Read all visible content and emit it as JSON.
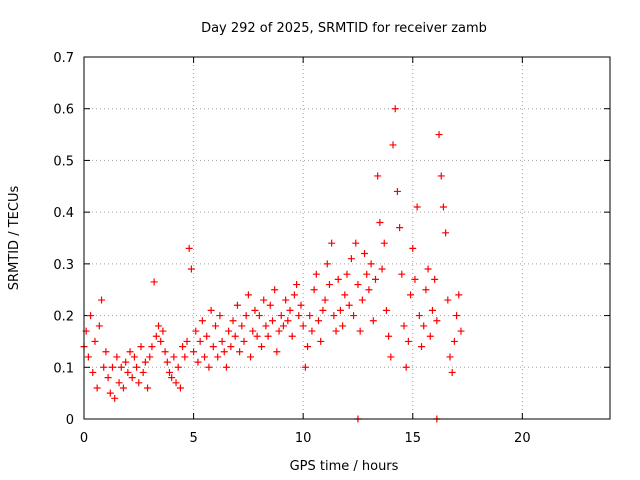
{
  "chart_data": {
    "type": "scatter",
    "title": "Day 292 of 2025, SRMTID for receiver zamb",
    "xlabel": "GPS time / hours",
    "ylabel": "SRMTID / TECUs",
    "xlim": [
      0,
      24
    ],
    "ylim": [
      0,
      0.7
    ],
    "x_ticks": [
      0,
      5,
      10,
      15,
      20
    ],
    "x_tick_labels": [
      "0",
      "5",
      "10",
      "15",
      "20"
    ],
    "y_ticks": [
      0,
      0.1,
      0.2,
      0.3,
      0.4,
      0.5,
      0.6,
      0.7
    ],
    "y_tick_labels": [
      "0",
      "0.1",
      "0.2",
      "0.3",
      "0.4",
      "0.5",
      "0.6",
      "0.7"
    ],
    "grid": true,
    "marker": "+",
    "color": "#ff0000",
    "series": [
      {
        "name": "SRMTID",
        "points": [
          [
            0.0,
            0.14
          ],
          [
            0.1,
            0.17
          ],
          [
            0.2,
            0.12
          ],
          [
            0.3,
            0.2
          ],
          [
            0.4,
            0.09
          ],
          [
            0.5,
            0.15
          ],
          [
            0.6,
            0.06
          ],
          [
            0.7,
            0.18
          ],
          [
            0.8,
            0.23
          ],
          [
            0.9,
            0.1
          ],
          [
            1.0,
            0.13
          ],
          [
            1.1,
            0.08
          ],
          [
            1.2,
            0.05
          ],
          [
            1.3,
            0.1
          ],
          [
            1.4,
            0.04
          ],
          [
            1.5,
            0.12
          ],
          [
            1.6,
            0.07
          ],
          [
            1.7,
            0.1
          ],
          [
            1.8,
            0.06
          ],
          [
            1.9,
            0.11
          ],
          [
            2.0,
            0.09
          ],
          [
            2.1,
            0.13
          ],
          [
            2.2,
            0.08
          ],
          [
            2.3,
            0.12
          ],
          [
            2.4,
            0.1
          ],
          [
            2.5,
            0.07
          ],
          [
            2.6,
            0.14
          ],
          [
            2.7,
            0.09
          ],
          [
            2.8,
            0.11
          ],
          [
            2.9,
            0.06
          ],
          [
            3.0,
            0.12
          ],
          [
            3.1,
            0.14
          ],
          [
            3.2,
            0.265
          ],
          [
            3.3,
            0.16
          ],
          [
            3.4,
            0.18
          ],
          [
            3.5,
            0.15
          ],
          [
            3.6,
            0.17
          ],
          [
            3.7,
            0.13
          ],
          [
            3.8,
            0.11
          ],
          [
            3.9,
            0.09
          ],
          [
            4.0,
            0.08
          ],
          [
            4.1,
            0.12
          ],
          [
            4.2,
            0.07
          ],
          [
            4.3,
            0.1
          ],
          [
            4.4,
            0.06
          ],
          [
            4.5,
            0.14
          ],
          [
            4.6,
            0.12
          ],
          [
            4.7,
            0.15
          ],
          [
            4.8,
            0.33
          ],
          [
            4.9,
            0.29
          ],
          [
            5.0,
            0.13
          ],
          [
            5.1,
            0.17
          ],
          [
            5.2,
            0.11
          ],
          [
            5.3,
            0.15
          ],
          [
            5.4,
            0.19
          ],
          [
            5.5,
            0.12
          ],
          [
            5.6,
            0.16
          ],
          [
            5.7,
            0.1
          ],
          [
            5.8,
            0.21
          ],
          [
            5.9,
            0.14
          ],
          [
            6.0,
            0.18
          ],
          [
            6.1,
            0.12
          ],
          [
            6.2,
            0.2
          ],
          [
            6.3,
            0.15
          ],
          [
            6.4,
            0.13
          ],
          [
            6.5,
            0.1
          ],
          [
            6.6,
            0.17
          ],
          [
            6.7,
            0.14
          ],
          [
            6.8,
            0.19
          ],
          [
            6.9,
            0.16
          ],
          [
            7.0,
            0.22
          ],
          [
            7.1,
            0.13
          ],
          [
            7.2,
            0.18
          ],
          [
            7.3,
            0.15
          ],
          [
            7.4,
            0.2
          ],
          [
            7.5,
            0.24
          ],
          [
            7.6,
            0.12
          ],
          [
            7.7,
            0.17
          ],
          [
            7.8,
            0.21
          ],
          [
            7.9,
            0.16
          ],
          [
            8.0,
            0.2
          ],
          [
            8.1,
            0.14
          ],
          [
            8.2,
            0.23
          ],
          [
            8.3,
            0.18
          ],
          [
            8.4,
            0.16
          ],
          [
            8.5,
            0.22
          ],
          [
            8.6,
            0.19
          ],
          [
            8.7,
            0.25
          ],
          [
            8.8,
            0.13
          ],
          [
            8.9,
            0.17
          ],
          [
            9.0,
            0.2
          ],
          [
            9.1,
            0.18
          ],
          [
            9.2,
            0.23
          ],
          [
            9.3,
            0.19
          ],
          [
            9.4,
            0.21
          ],
          [
            9.5,
            0.16
          ],
          [
            9.6,
            0.24
          ],
          [
            9.7,
            0.26
          ],
          [
            9.8,
            0.2
          ],
          [
            9.9,
            0.22
          ],
          [
            10.0,
            0.18
          ],
          [
            10.1,
            0.1
          ],
          [
            10.2,
            0.14
          ],
          [
            10.3,
            0.2
          ],
          [
            10.4,
            0.17
          ],
          [
            10.5,
            0.25
          ],
          [
            10.6,
            0.28
          ],
          [
            10.7,
            0.19
          ],
          [
            10.8,
            0.15
          ],
          [
            10.9,
            0.21
          ],
          [
            11.0,
            0.23
          ],
          [
            11.1,
            0.3
          ],
          [
            11.2,
            0.26
          ],
          [
            11.3,
            0.34
          ],
          [
            11.4,
            0.2
          ],
          [
            11.5,
            0.17
          ],
          [
            11.6,
            0.27
          ],
          [
            11.7,
            0.21
          ],
          [
            11.8,
            0.18
          ],
          [
            11.9,
            0.24
          ],
          [
            12.0,
            0.28
          ],
          [
            12.1,
            0.22
          ],
          [
            12.2,
            0.31
          ],
          [
            12.3,
            0.2
          ],
          [
            12.4,
            0.34
          ],
          [
            12.5,
            0.26
          ],
          [
            12.6,
            0.17
          ],
          [
            12.7,
            0.23
          ],
          [
            12.8,
            0.32
          ],
          [
            12.9,
            0.28
          ],
          [
            13.0,
            0.25
          ],
          [
            13.1,
            0.3
          ],
          [
            13.2,
            0.19
          ],
          [
            13.3,
            0.27
          ],
          [
            13.4,
            0.47
          ],
          [
            13.5,
            0.38
          ],
          [
            13.6,
            0.29
          ],
          [
            13.7,
            0.34
          ],
          [
            13.8,
            0.21
          ],
          [
            13.9,
            0.16
          ],
          [
            14.0,
            0.12
          ],
          [
            14.1,
            0.53
          ],
          [
            14.2,
            0.6
          ],
          [
            14.3,
            0.44
          ],
          [
            14.4,
            0.37
          ],
          [
            14.5,
            0.28
          ],
          [
            14.6,
            0.18
          ],
          [
            14.7,
            0.1
          ],
          [
            14.8,
            0.15
          ],
          [
            14.9,
            0.24
          ],
          [
            15.0,
            0.33
          ],
          [
            15.1,
            0.27
          ],
          [
            15.2,
            0.41
          ],
          [
            15.3,
            0.2
          ],
          [
            15.4,
            0.14
          ],
          [
            15.5,
            0.18
          ],
          [
            15.6,
            0.25
          ],
          [
            15.7,
            0.29
          ],
          [
            15.8,
            0.16
          ],
          [
            15.9,
            0.21
          ],
          [
            16.0,
            0.27
          ],
          [
            16.1,
            0.19
          ],
          [
            16.2,
            0.55
          ],
          [
            16.3,
            0.47
          ],
          [
            16.4,
            0.41
          ],
          [
            16.5,
            0.36
          ],
          [
            16.6,
            0.23
          ],
          [
            16.7,
            0.12
          ],
          [
            16.8,
            0.09
          ],
          [
            16.9,
            0.15
          ],
          [
            17.0,
            0.2
          ],
          [
            17.1,
            0.24
          ],
          [
            17.2,
            0.17
          ],
          [
            12.5,
            0.0
          ],
          [
            16.1,
            0.0
          ]
        ]
      }
    ]
  }
}
